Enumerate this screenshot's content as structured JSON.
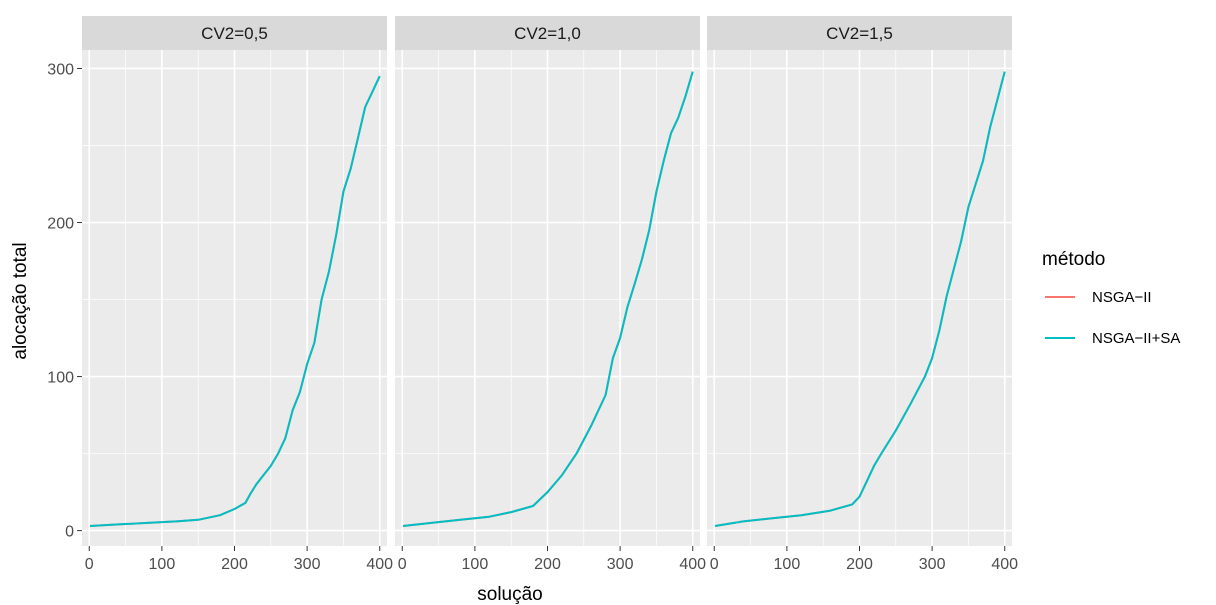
{
  "colors": {
    "panel_bg": "#EBEBEB",
    "strip_bg": "#D9D9D9",
    "grid": "#FFFFFF",
    "tick": "#333333"
  },
  "chart_data": {
    "type": "line",
    "facet_var": "CV2",
    "xlabel": "solução",
    "ylabel": "alocação total",
    "xlim": [
      -10,
      410
    ],
    "ylim": [
      -10,
      312
    ],
    "x_ticks": [
      0,
      100,
      200,
      300,
      400
    ],
    "y_ticks": [
      0,
      100,
      200,
      300
    ],
    "grid": true,
    "legend": {
      "title": "método",
      "position": "right",
      "entries": [
        {
          "label": "NSGA−II",
          "color": "#F8766D"
        },
        {
          "label": "NSGA−II+SA",
          "color": "#00BFC4"
        }
      ]
    },
    "panels": [
      {
        "strip": "CV2=0,5",
        "series": [
          {
            "name": "NSGA−II",
            "color": "#F8766D",
            "x": [
              1,
              40,
              80,
              120,
              150,
              180,
              200,
              215,
              222,
              230,
              240,
              250,
              260,
              270,
              280,
              290,
              300,
              310,
              320,
              330,
              340,
              350,
              360,
              370,
              380,
              390,
              400
            ],
            "y": [
              3,
              4,
              5,
              6,
              7,
              10,
              14,
              18,
              24,
              30,
              36,
              42,
              50,
              60,
              78,
              90,
              108,
              122,
              150,
              168,
              192,
              220,
              235,
              255,
              275,
              285,
              295
            ]
          },
          {
            "name": "NSGA−II+SA",
            "color": "#00BFC4",
            "x": [
              1,
              40,
              80,
              120,
              150,
              180,
              200,
              215,
              222,
              230,
              240,
              250,
              260,
              270,
              280,
              290,
              300,
              310,
              320,
              330,
              340,
              350,
              360,
              370,
              380,
              390,
              400
            ],
            "y": [
              3,
              4,
              5,
              6,
              7,
              10,
              14,
              18,
              24,
              30,
              36,
              42,
              50,
              60,
              78,
              90,
              108,
              122,
              150,
              168,
              192,
              220,
              235,
              255,
              275,
              285,
              295
            ]
          }
        ]
      },
      {
        "strip": "CV2=1,0",
        "series": [
          {
            "name": "NSGA−II",
            "color": "#F8766D",
            "x": [
              1,
              40,
              80,
              120,
              150,
              180,
              200,
              220,
              240,
              260,
              280,
              290,
              300,
              310,
              320,
              330,
              340,
              350,
              360,
              370,
              380,
              390,
              400
            ],
            "y": [
              3,
              5,
              7,
              9,
              12,
              16,
              25,
              36,
              50,
              68,
              88,
              112,
              125,
              145,
              160,
              176,
              195,
              220,
              240,
              258,
              268,
              282,
              298
            ]
          },
          {
            "name": "NSGA−II+SA",
            "color": "#00BFC4",
            "x": [
              1,
              40,
              80,
              120,
              150,
              180,
              200,
              220,
              240,
              260,
              280,
              290,
              300,
              310,
              320,
              330,
              340,
              350,
              360,
              370,
              380,
              390,
              400
            ],
            "y": [
              3,
              5,
              7,
              9,
              12,
              16,
              25,
              36,
              50,
              68,
              88,
              112,
              125,
              145,
              160,
              176,
              195,
              220,
              240,
              258,
              268,
              282,
              298
            ]
          }
        ]
      },
      {
        "strip": "CV2=1,5",
        "series": [
          {
            "name": "NSGA−II",
            "color": "#F8766D",
            "x": [
              1,
              40,
              80,
              120,
              160,
              190,
              200,
              210,
              220,
              230,
              250,
              270,
              290,
              300,
              310,
              320,
              330,
              340,
              350,
              360,
              370,
              380,
              390,
              400
            ],
            "y": [
              3,
              6,
              8,
              10,
              13,
              17,
              22,
              32,
              42,
              50,
              65,
              82,
              100,
              112,
              130,
              152,
              170,
              188,
              210,
              225,
              240,
              262,
              280,
              298
            ]
          },
          {
            "name": "NSGA−II+SA",
            "color": "#00BFC4",
            "x": [
              1,
              40,
              80,
              120,
              160,
              190,
              200,
              210,
              220,
              230,
              250,
              270,
              290,
              300,
              310,
              320,
              330,
              340,
              350,
              360,
              370,
              380,
              390,
              400
            ],
            "y": [
              3,
              6,
              8,
              10,
              13,
              17,
              22,
              32,
              42,
              50,
              65,
              82,
              100,
              112,
              130,
              152,
              170,
              188,
              210,
              225,
              240,
              262,
              280,
              298
            ]
          }
        ]
      }
    ]
  }
}
